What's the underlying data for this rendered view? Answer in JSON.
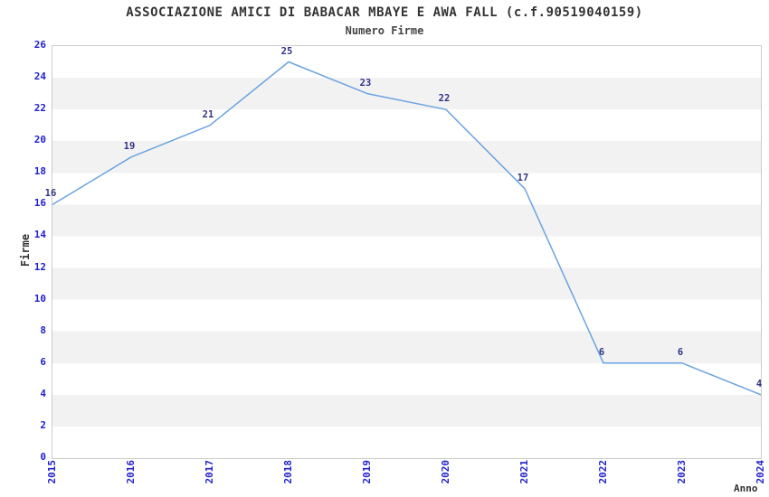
{
  "title": "ASSOCIAZIONE AMICI DI BABACAR MBAYE E AWA FALL (c.f.90519040159)",
  "subtitle": "Numero Firme",
  "chart_data": {
    "type": "line",
    "title": "ASSOCIAZIONE AMICI DI BABACAR MBAYE E AWA FALL (c.f.90519040159)",
    "subtitle": "Numero Firme",
    "xlabel": "Anno",
    "ylabel": "Firme",
    "x": [
      2015,
      2016,
      2017,
      2018,
      2019,
      2020,
      2021,
      2022,
      2023,
      2024
    ],
    "series": [
      {
        "name": "Numero Firme",
        "values": [
          16,
          19,
          21,
          25,
          23,
          22,
          17,
          6,
          6,
          4
        ]
      }
    ],
    "data_labels": [
      16,
      19,
      21,
      25,
      23,
      22,
      17,
      6,
      6,
      4
    ],
    "ylim": [
      0,
      26
    ],
    "yticks": [
      0,
      2,
      4,
      6,
      8,
      10,
      12,
      14,
      16,
      18,
      20,
      22,
      24,
      26
    ],
    "xticks": [
      "2015",
      "2016",
      "2017",
      "2018",
      "2019",
      "2020",
      "2021",
      "2022",
      "2023",
      "2024"
    ],
    "grid": "horizontal-alternating-bands",
    "legend_position": "none",
    "colors": {
      "line": "#6BA3E0",
      "tick_labels": "#2222CC",
      "data_labels": "#333388",
      "band": "#F2F2F2",
      "plot_border": "#CCCCCC",
      "title_text": "#333333",
      "background": "#FFFFFF"
    }
  }
}
